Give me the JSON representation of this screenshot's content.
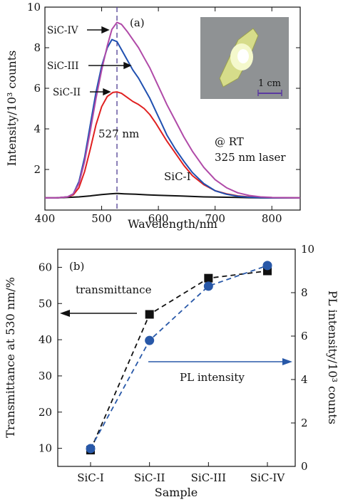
{
  "chart_data": [
    {
      "panel": "(a)",
      "type": "line",
      "xlabel": "Wavelength/nm",
      "ylabel": "Intensity/10³ counts",
      "xlim": [
        400,
        850
      ],
      "ylim": [
        0,
        10
      ],
      "xticks": [
        400,
        500,
        600,
        700,
        800
      ],
      "yticks": [
        2,
        4,
        6,
        8,
        10
      ],
      "series": [
        {
          "name": "SiC-I",
          "color": "#111111",
          "x": [
            400,
            420,
            440,
            460,
            480,
            500,
            515,
            527,
            540,
            560,
            580,
            600,
            620,
            640,
            660,
            680,
            700,
            720,
            740,
            760,
            780,
            800,
            820,
            850
          ],
          "y": [
            0.6,
            0.6,
            0.62,
            0.65,
            0.7,
            0.76,
            0.8,
            0.82,
            0.8,
            0.78,
            0.75,
            0.73,
            0.71,
            0.69,
            0.67,
            0.65,
            0.64,
            0.63,
            0.62,
            0.61,
            0.6,
            0.6,
            0.6,
            0.6
          ]
        },
        {
          "name": "SiC-II",
          "color": "#e02020",
          "x": [
            400,
            420,
            440,
            450,
            460,
            470,
            480,
            490,
            500,
            510,
            520,
            527,
            535,
            545,
            555,
            565,
            575,
            585,
            595,
            605,
            615,
            630,
            645,
            660,
            680,
            700,
            720,
            740,
            760,
            780,
            800,
            850
          ],
          "y": [
            0.6,
            0.6,
            0.65,
            0.75,
            1.1,
            1.9,
            3.0,
            4.2,
            5.1,
            5.6,
            5.8,
            5.82,
            5.75,
            5.55,
            5.35,
            5.2,
            5.0,
            4.7,
            4.3,
            3.85,
            3.4,
            2.8,
            2.2,
            1.7,
            1.25,
            0.95,
            0.8,
            0.7,
            0.65,
            0.62,
            0.6,
            0.6
          ]
        },
        {
          "name": "SiC-III",
          "color": "#2050b0",
          "x": [
            400,
            420,
            440,
            450,
            460,
            470,
            480,
            490,
            500,
            510,
            518,
            527,
            535,
            545,
            555,
            565,
            575,
            585,
            595,
            605,
            615,
            630,
            645,
            660,
            680,
            700,
            720,
            740,
            760,
            780,
            800,
            850
          ],
          "y": [
            0.6,
            0.6,
            0.65,
            0.8,
            1.4,
            2.6,
            4.2,
            5.8,
            7.1,
            8.0,
            8.4,
            8.3,
            7.9,
            7.4,
            6.9,
            6.5,
            6.0,
            5.5,
            4.9,
            4.3,
            3.7,
            3.0,
            2.4,
            1.85,
            1.3,
            0.95,
            0.78,
            0.68,
            0.63,
            0.61,
            0.6,
            0.6
          ]
        },
        {
          "name": "SiC-IV",
          "color": "#b04aa8",
          "x": [
            400,
            420,
            440,
            450,
            460,
            470,
            480,
            490,
            500,
            510,
            518,
            527,
            535,
            545,
            555,
            565,
            575,
            585,
            595,
            605,
            615,
            630,
            645,
            660,
            680,
            700,
            720,
            740,
            760,
            780,
            800,
            850
          ],
          "y": [
            0.6,
            0.6,
            0.65,
            0.8,
            1.3,
            2.4,
            3.9,
            5.5,
            6.9,
            8.1,
            8.9,
            9.25,
            9.15,
            8.8,
            8.4,
            8.0,
            7.5,
            7.0,
            6.4,
            5.8,
            5.2,
            4.4,
            3.6,
            2.9,
            2.1,
            1.5,
            1.1,
            0.85,
            0.72,
            0.65,
            0.62,
            0.6
          ]
        }
      ],
      "vline": {
        "x": 527,
        "label": "527 nm"
      },
      "annotations": [
        "(a)",
        "@ RT",
        "325 nm laser",
        "1 cm"
      ],
      "arrow_labels": [
        "SiC-IV",
        "SiC-III",
        "SiC-II"
      ]
    },
    {
      "panel": "(b)",
      "type": "scatter",
      "xlabel": "Sample",
      "ylabel_left": "Transmittance at 530 nm/%",
      "ylabel_right": "PL intensity/10³ counts",
      "categories": [
        "SiC-I",
        "SiC-II",
        "SiC-III",
        "SiC-IV"
      ],
      "ylim_left": [
        5,
        65
      ],
      "yticks_left": [
        10,
        20,
        30,
        40,
        50,
        60
      ],
      "ylim_right": [
        0,
        10
      ],
      "yticks_right": [
        0,
        2,
        4,
        6,
        8,
        10
      ],
      "series": [
        {
          "name": "transmittance",
          "axis": "left",
          "marker": "square",
          "color": "#111111",
          "values": [
            9.5,
            47,
            57,
            59
          ]
        },
        {
          "name": "PL intensity",
          "axis": "right",
          "marker": "circle",
          "color": "#2858a8",
          "values": [
            0.82,
            5.8,
            8.3,
            9.25
          ]
        }
      ],
      "annotations": [
        "(b)"
      ]
    }
  ]
}
